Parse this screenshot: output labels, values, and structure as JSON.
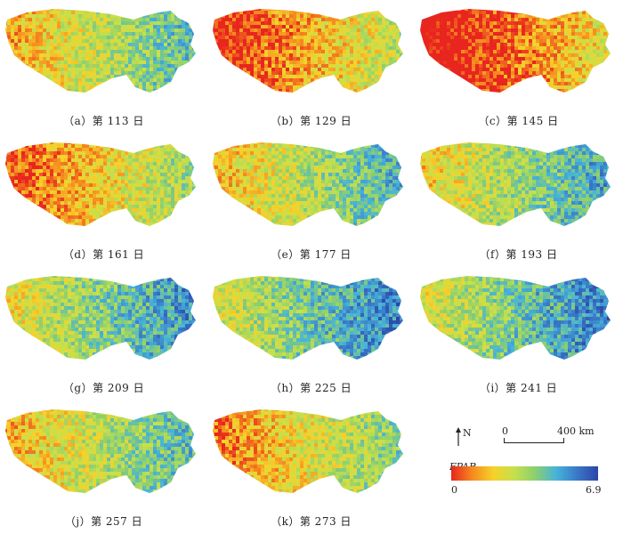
{
  "chart_data": {
    "type": "heatmap",
    "panels": [
      {
        "caption": "（a）第 113 日"
      },
      {
        "caption": "（b）第 129 日"
      },
      {
        "caption": "（c）第 145 日"
      },
      {
        "caption": "（d）第 161 日"
      },
      {
        "caption": "（e）第 177 日"
      },
      {
        "caption": "（f）第 193 日"
      },
      {
        "caption": "（g）第 209 日"
      },
      {
        "caption": "（h）第 225 日"
      },
      {
        "caption": "（i）第 241 日"
      },
      {
        "caption": "（j）第 257 日"
      },
      {
        "caption": "（k）第 273 日"
      }
    ],
    "panel_mean_levels": [
      0.45,
      0.22,
      0.12,
      0.3,
      0.48,
      0.52,
      0.58,
      0.62,
      0.62,
      0.46,
      0.36
    ],
    "colorbar": {
      "title": "FPAR",
      "min_label": "0",
      "max_label": "6.9",
      "colors": [
        "#e8251e",
        "#f58a1f",
        "#f6d12a",
        "#c6e04c",
        "#8ccf6f",
        "#46b3d9",
        "#3a78c8",
        "#2b45a6"
      ]
    },
    "north_label": "N",
    "scale": {
      "start_label": "0",
      "end_label": "400 km"
    }
  }
}
